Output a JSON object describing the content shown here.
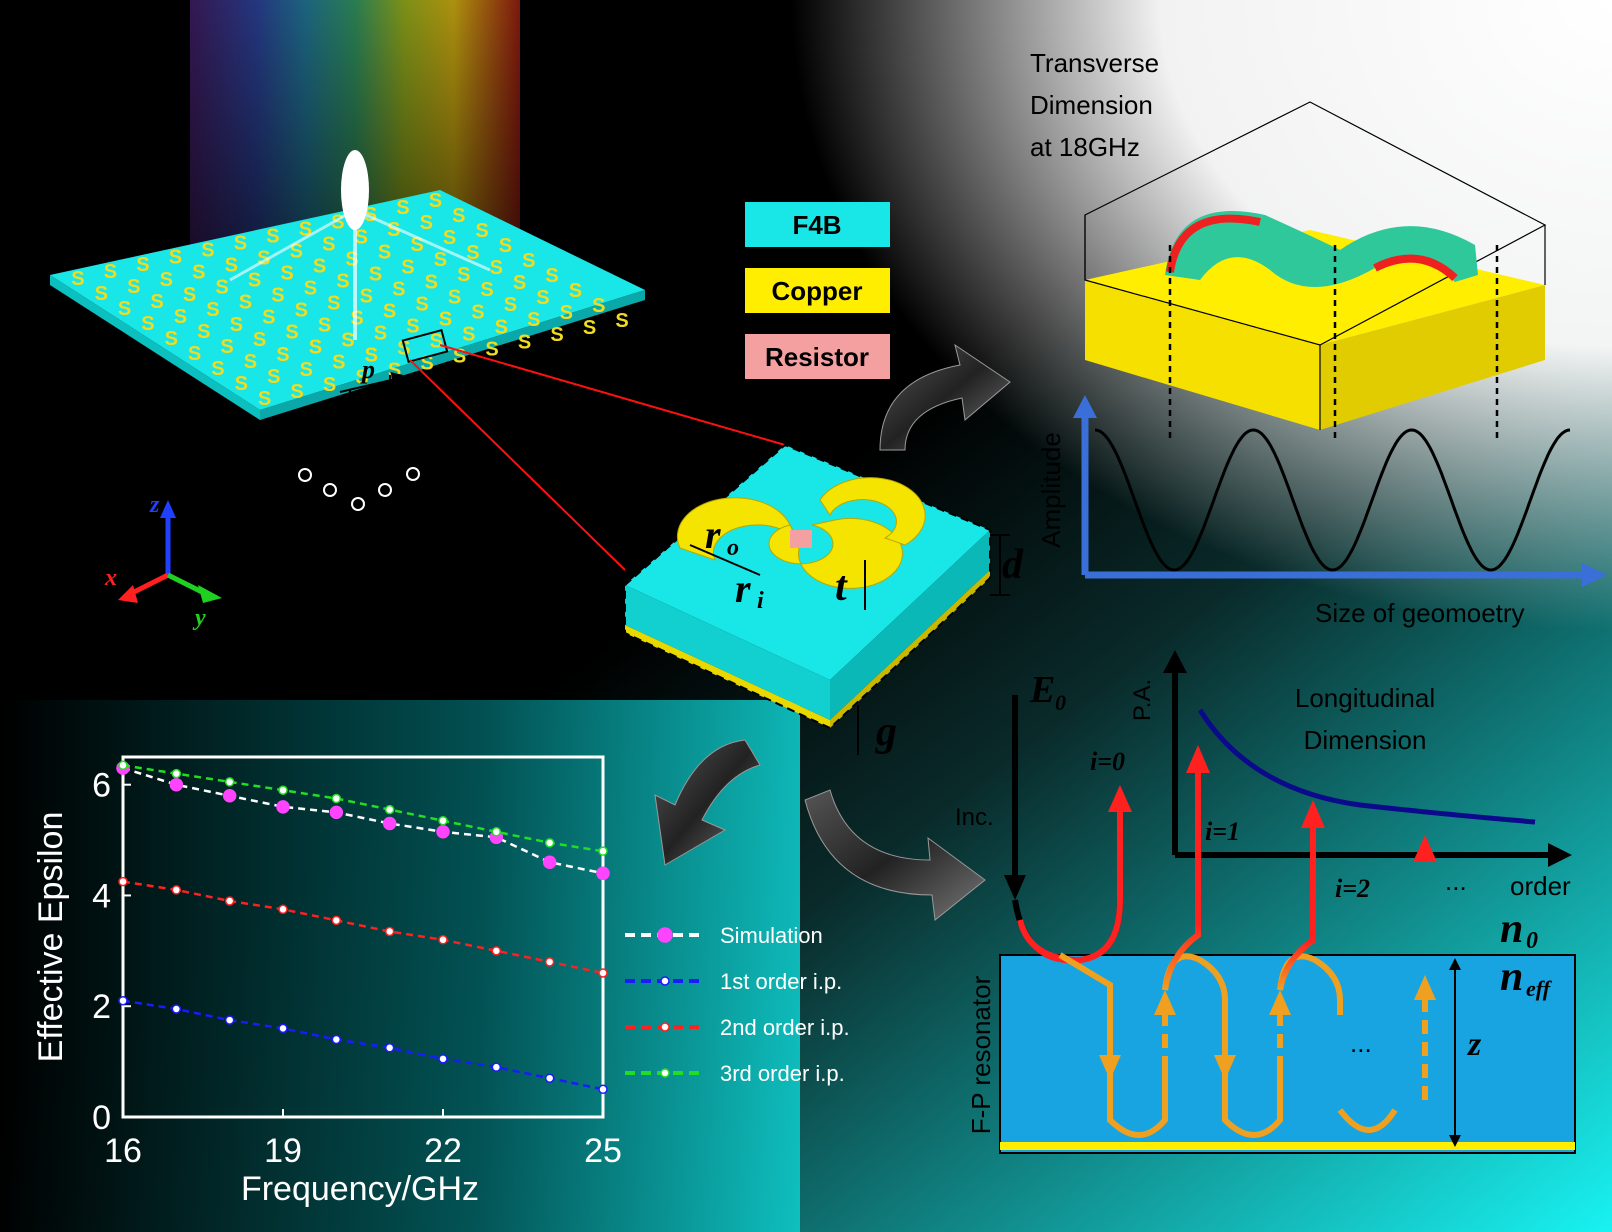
{
  "legend_materials": [
    {
      "label": "F4B",
      "color": "#19e6e6"
    },
    {
      "label": "Copper",
      "color": "#ffee00"
    },
    {
      "label": "Resistor",
      "color": "#f4a0a0"
    }
  ],
  "transverse": {
    "title_lines": [
      "Transverse",
      "Dimension",
      "at 18GHz"
    ],
    "ylabel": "Amplitude",
    "xlabel": "Size of geomoetry"
  },
  "unit_cell": {
    "labels": {
      "ro": "r",
      "ro_sub": "o",
      "ri": "r",
      "ri_sub": "i",
      "t": "t",
      "d": "d",
      "g": "g",
      "p": "p"
    }
  },
  "axes_labels": {
    "x": "x",
    "y": "y",
    "z": "z"
  },
  "longitudinal": {
    "title_lines": [
      "Longitudinal",
      "Dimension"
    ],
    "ylabel": "P.A.",
    "xlabel": "order",
    "E0": "E",
    "E0_sub": "0",
    "inc": "Inc.",
    "orders": [
      "i=0",
      "i=1",
      "i=2",
      "..."
    ],
    "n0": "n",
    "n0_sub": "0",
    "neff": "n",
    "neff_sub": "eff",
    "z": "z",
    "resonator_label": "F-P resonator",
    "inner_dots": "..."
  },
  "chart_data": {
    "type": "line",
    "xlabel": "Frequency/GHz",
    "ylabel": "Effective Epsilon",
    "xlim": [
      16,
      25
    ],
    "ylim": [
      0,
      6.5
    ],
    "xticks": [
      16,
      19,
      22,
      25
    ],
    "yticks": [
      0,
      2,
      4,
      6
    ],
    "series": [
      {
        "name": "Simulation",
        "color": "#ff44ff",
        "line": "#ffffff",
        "x": [
          16,
          17,
          18,
          19,
          20,
          21,
          22,
          23,
          24,
          25
        ],
        "y": [
          6.3,
          6.0,
          5.8,
          5.6,
          5.5,
          5.3,
          5.15,
          5.05,
          4.6,
          4.4
        ]
      },
      {
        "name": "1st order i.p.",
        "color": "#1a1aff",
        "line": "#1a1aff",
        "x": [
          16,
          17,
          18,
          19,
          20,
          21,
          22,
          23,
          24,
          25
        ],
        "y": [
          2.1,
          1.95,
          1.75,
          1.6,
          1.4,
          1.25,
          1.05,
          0.9,
          0.7,
          0.5
        ]
      },
      {
        "name": "2nd order i.p.",
        "color": "#ff2020",
        "line": "#ff2020",
        "x": [
          16,
          17,
          18,
          19,
          20,
          21,
          22,
          23,
          24,
          25
        ],
        "y": [
          4.25,
          4.1,
          3.9,
          3.75,
          3.55,
          3.35,
          3.2,
          3.0,
          2.8,
          2.6
        ]
      },
      {
        "name": "3rd order i.p.",
        "color": "#22dd22",
        "line": "#22dd22",
        "x": [
          16,
          17,
          18,
          19,
          20,
          21,
          22,
          23,
          24,
          25
        ],
        "y": [
          6.35,
          6.2,
          6.05,
          5.9,
          5.75,
          5.55,
          5.35,
          5.15,
          4.95,
          4.8
        ]
      }
    ]
  }
}
